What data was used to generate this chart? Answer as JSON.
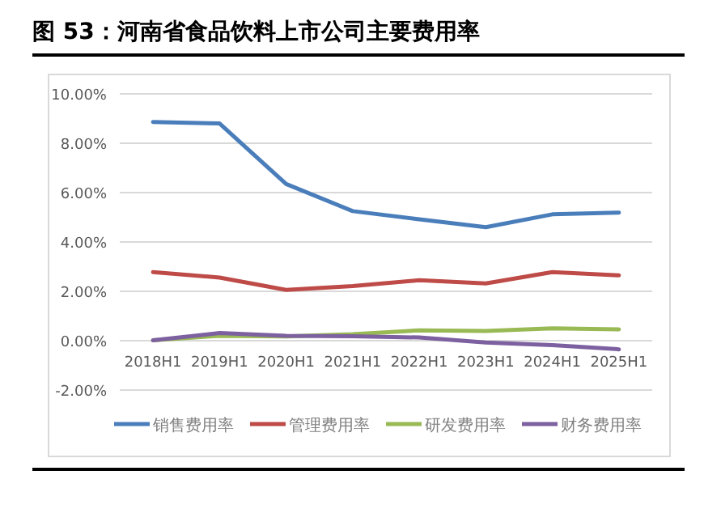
{
  "chart_data": {
    "type": "line",
    "title": "图 53：河南省食品饮料上市公司主要费用率",
    "categories": [
      "2018H1",
      "2019H1",
      "2020H1",
      "2021H1",
      "2022H1",
      "2023H1",
      "2024H1",
      "2025H1"
    ],
    "series": [
      {
        "name": "销售费用率",
        "color": "#4a7ebb",
        "values": [
          8.86,
          8.8,
          6.35,
          5.25,
          4.92,
          4.6,
          5.12,
          5.19
        ]
      },
      {
        "name": "管理费用率",
        "color": "#be4b48",
        "values": [
          2.78,
          2.56,
          2.06,
          2.21,
          2.45,
          2.32,
          2.78,
          2.65
        ]
      },
      {
        "name": "研发费用率",
        "color": "#98b954",
        "values": [
          0.02,
          0.2,
          0.17,
          0.26,
          0.42,
          0.39,
          0.5,
          0.46
        ]
      },
      {
        "name": "财务费用率",
        "color": "#7d60a0",
        "values": [
          0.02,
          0.31,
          0.2,
          0.18,
          0.13,
          -0.07,
          -0.18,
          -0.35
        ]
      }
    ],
    "ylim": [
      -2,
      10
    ],
    "yticks": [
      {
        "value": -2,
        "label": "-2.00%"
      },
      {
        "value": 0,
        "label": "0.00%"
      },
      {
        "value": 2,
        "label": "2.00%"
      },
      {
        "value": 4,
        "label": "4.00%"
      },
      {
        "value": 6,
        "label": "6.00%"
      },
      {
        "value": 8,
        "label": "8.00%"
      },
      {
        "value": 10,
        "label": "10.00%"
      }
    ],
    "grid": "y",
    "legend": "bottom",
    "marker": "none",
    "line_style": "solid"
  }
}
